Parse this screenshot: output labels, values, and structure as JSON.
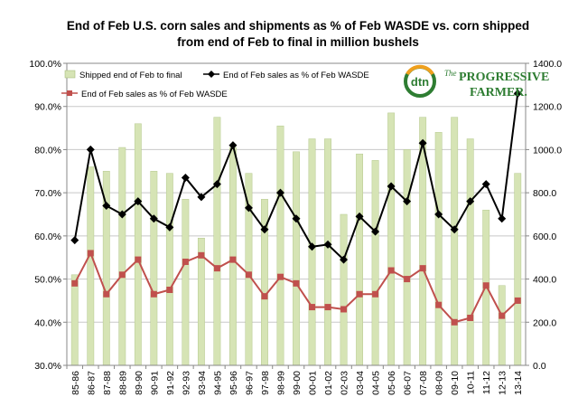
{
  "chart_data": {
    "type": "bar",
    "title_lines": [
      "End of Feb U.S. corn sales and shipments as % of Feb WASDE  vs. corn shipped",
      "from end of Feb to final in million bushels"
    ],
    "categories": [
      "85-86",
      "86-87",
      "87-88",
      "88-89",
      "89-90",
      "90-91",
      "91-92",
      "92-93",
      "93-94",
      "94-95",
      "95-96",
      "96-97",
      "97-98",
      "98-99",
      "99-00",
      "00-01",
      "01-02",
      "02-03",
      "03-04",
      "04-05",
      "05-06",
      "06-07",
      "07-08",
      "08-09",
      "09-10",
      "10-11",
      "11-12",
      "12-13",
      "13-14"
    ],
    "y_left": {
      "ticks": [
        "30.0%",
        "40.0%",
        "50.0%",
        "60.0%",
        "70.0%",
        "80.0%",
        "90.0%",
        "100.0%"
      ],
      "ylim": [
        30,
        100
      ]
    },
    "y_right": {
      "ticks": [
        "0.0",
        "200.0",
        "400.0",
        "600.0",
        "800.0",
        "1000.0",
        "1200.0",
        "1400.0"
      ],
      "ylim": [
        0,
        1400
      ]
    },
    "series": [
      {
        "name": "Shipped end of Feb to final",
        "type": "bar",
        "axis": "right",
        "color": "#d6e4b5",
        "values": [
          420,
          920,
          900,
          1010,
          1120,
          900,
          890,
          770,
          590,
          1150,
          1010,
          890,
          770,
          1110,
          990,
          1050,
          1050,
          700,
          980,
          950,
          1170,
          1000,
          1150,
          1080,
          1150,
          1050,
          720,
          370,
          890
        ]
      },
      {
        "name": "End of Feb sales as % of Feb WASDE",
        "type": "line",
        "axis": "left",
        "color": "#000000",
        "marker": "diamond",
        "values": [
          59.0,
          80.0,
          67.0,
          65.0,
          68.0,
          64.0,
          62.0,
          73.5,
          69.0,
          72.0,
          81.0,
          66.5,
          61.5,
          70.0,
          64.0,
          57.5,
          58.0,
          54.5,
          64.5,
          61.0,
          71.5,
          68.0,
          81.5,
          65.0,
          61.5,
          68.0,
          72.0,
          64.0,
          93.0
        ]
      },
      {
        "name": "End of Feb sales as % of Feb WASDE",
        "type": "line",
        "axis": "left",
        "color": "#c0504d",
        "marker": "square",
        "values": [
          49.0,
          56.0,
          46.5,
          51.0,
          54.5,
          46.5,
          47.5,
          54.0,
          55.5,
          52.5,
          54.5,
          51.0,
          46.0,
          50.5,
          49.0,
          43.5,
          43.5,
          43.0,
          46.5,
          46.5,
          52.0,
          50.0,
          52.5,
          44.0,
          40.0,
          41.0,
          48.5,
          41.5,
          45.0
        ]
      }
    ],
    "logo": {
      "brand": "dtn",
      "text_lines": [
        "The",
        "PROGRESSIVE",
        "FARMER."
      ]
    },
    "colors": {
      "grid": "#c8c8c8",
      "frame": "#888888",
      "background": "#ffffff"
    }
  }
}
